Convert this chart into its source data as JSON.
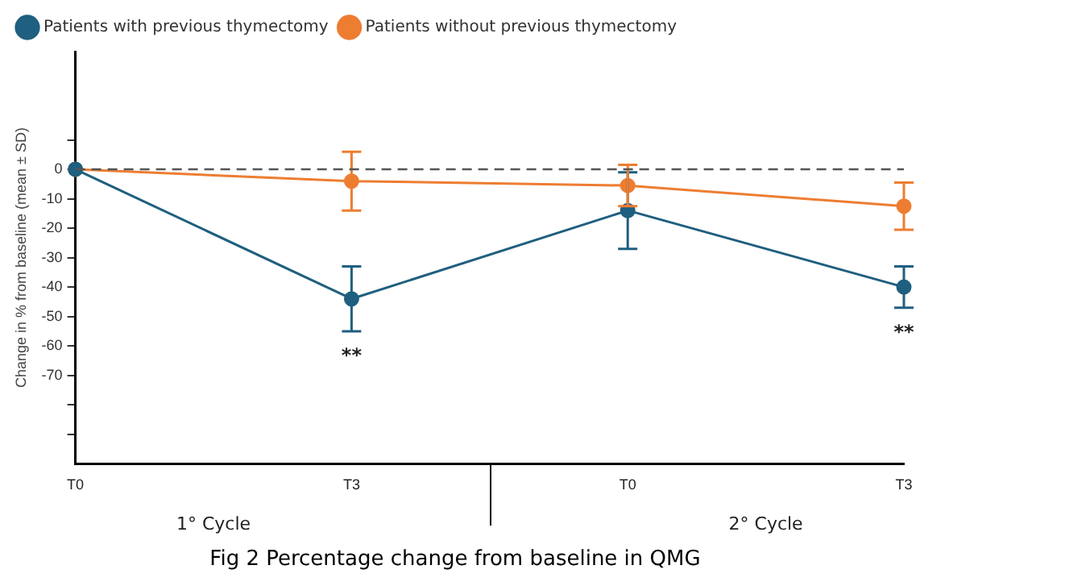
{
  "chart_data": {
    "type": "line",
    "title": "Fig 2 Percentage change from baseline in QMG",
    "ylabel": "Change in % from baseline (mean ± SD)",
    "categories": [
      "T0",
      "T3",
      "T0",
      "T3"
    ],
    "series": [
      {
        "name": "Patients with previous thymectomy",
        "color": "#1f5f7f",
        "values": [
          0,
          -44,
          -14,
          -40
        ],
        "errors": [
          null,
          11,
          13,
          7
        ]
      },
      {
        "name": "Patients without previous thymectomy",
        "color": "#ed7d31",
        "values": [
          0,
          -4,
          -5.5,
          -12.5
        ],
        "errors": [
          null,
          10,
          7,
          8
        ]
      }
    ],
    "ylim": [
      -100,
      40
    ],
    "yticks": [
      {
        "value": 10,
        "label": null
      },
      0,
      -10,
      -20,
      -30,
      -40,
      -50,
      -60,
      -70,
      {
        "value": -80,
        "label": null
      },
      {
        "value": -90,
        "label": null
      }
    ],
    "ref_lines": [
      {
        "axis": "y",
        "value": 0,
        "color": "#555555",
        "line_style": "dashed"
      }
    ],
    "annotations": [
      "**",
      "**",
      "1° Cycle",
      "2° Cycle"
    ],
    "marker": "circle",
    "line_style": "solid",
    "legend": "top left",
    "grid": false
  }
}
